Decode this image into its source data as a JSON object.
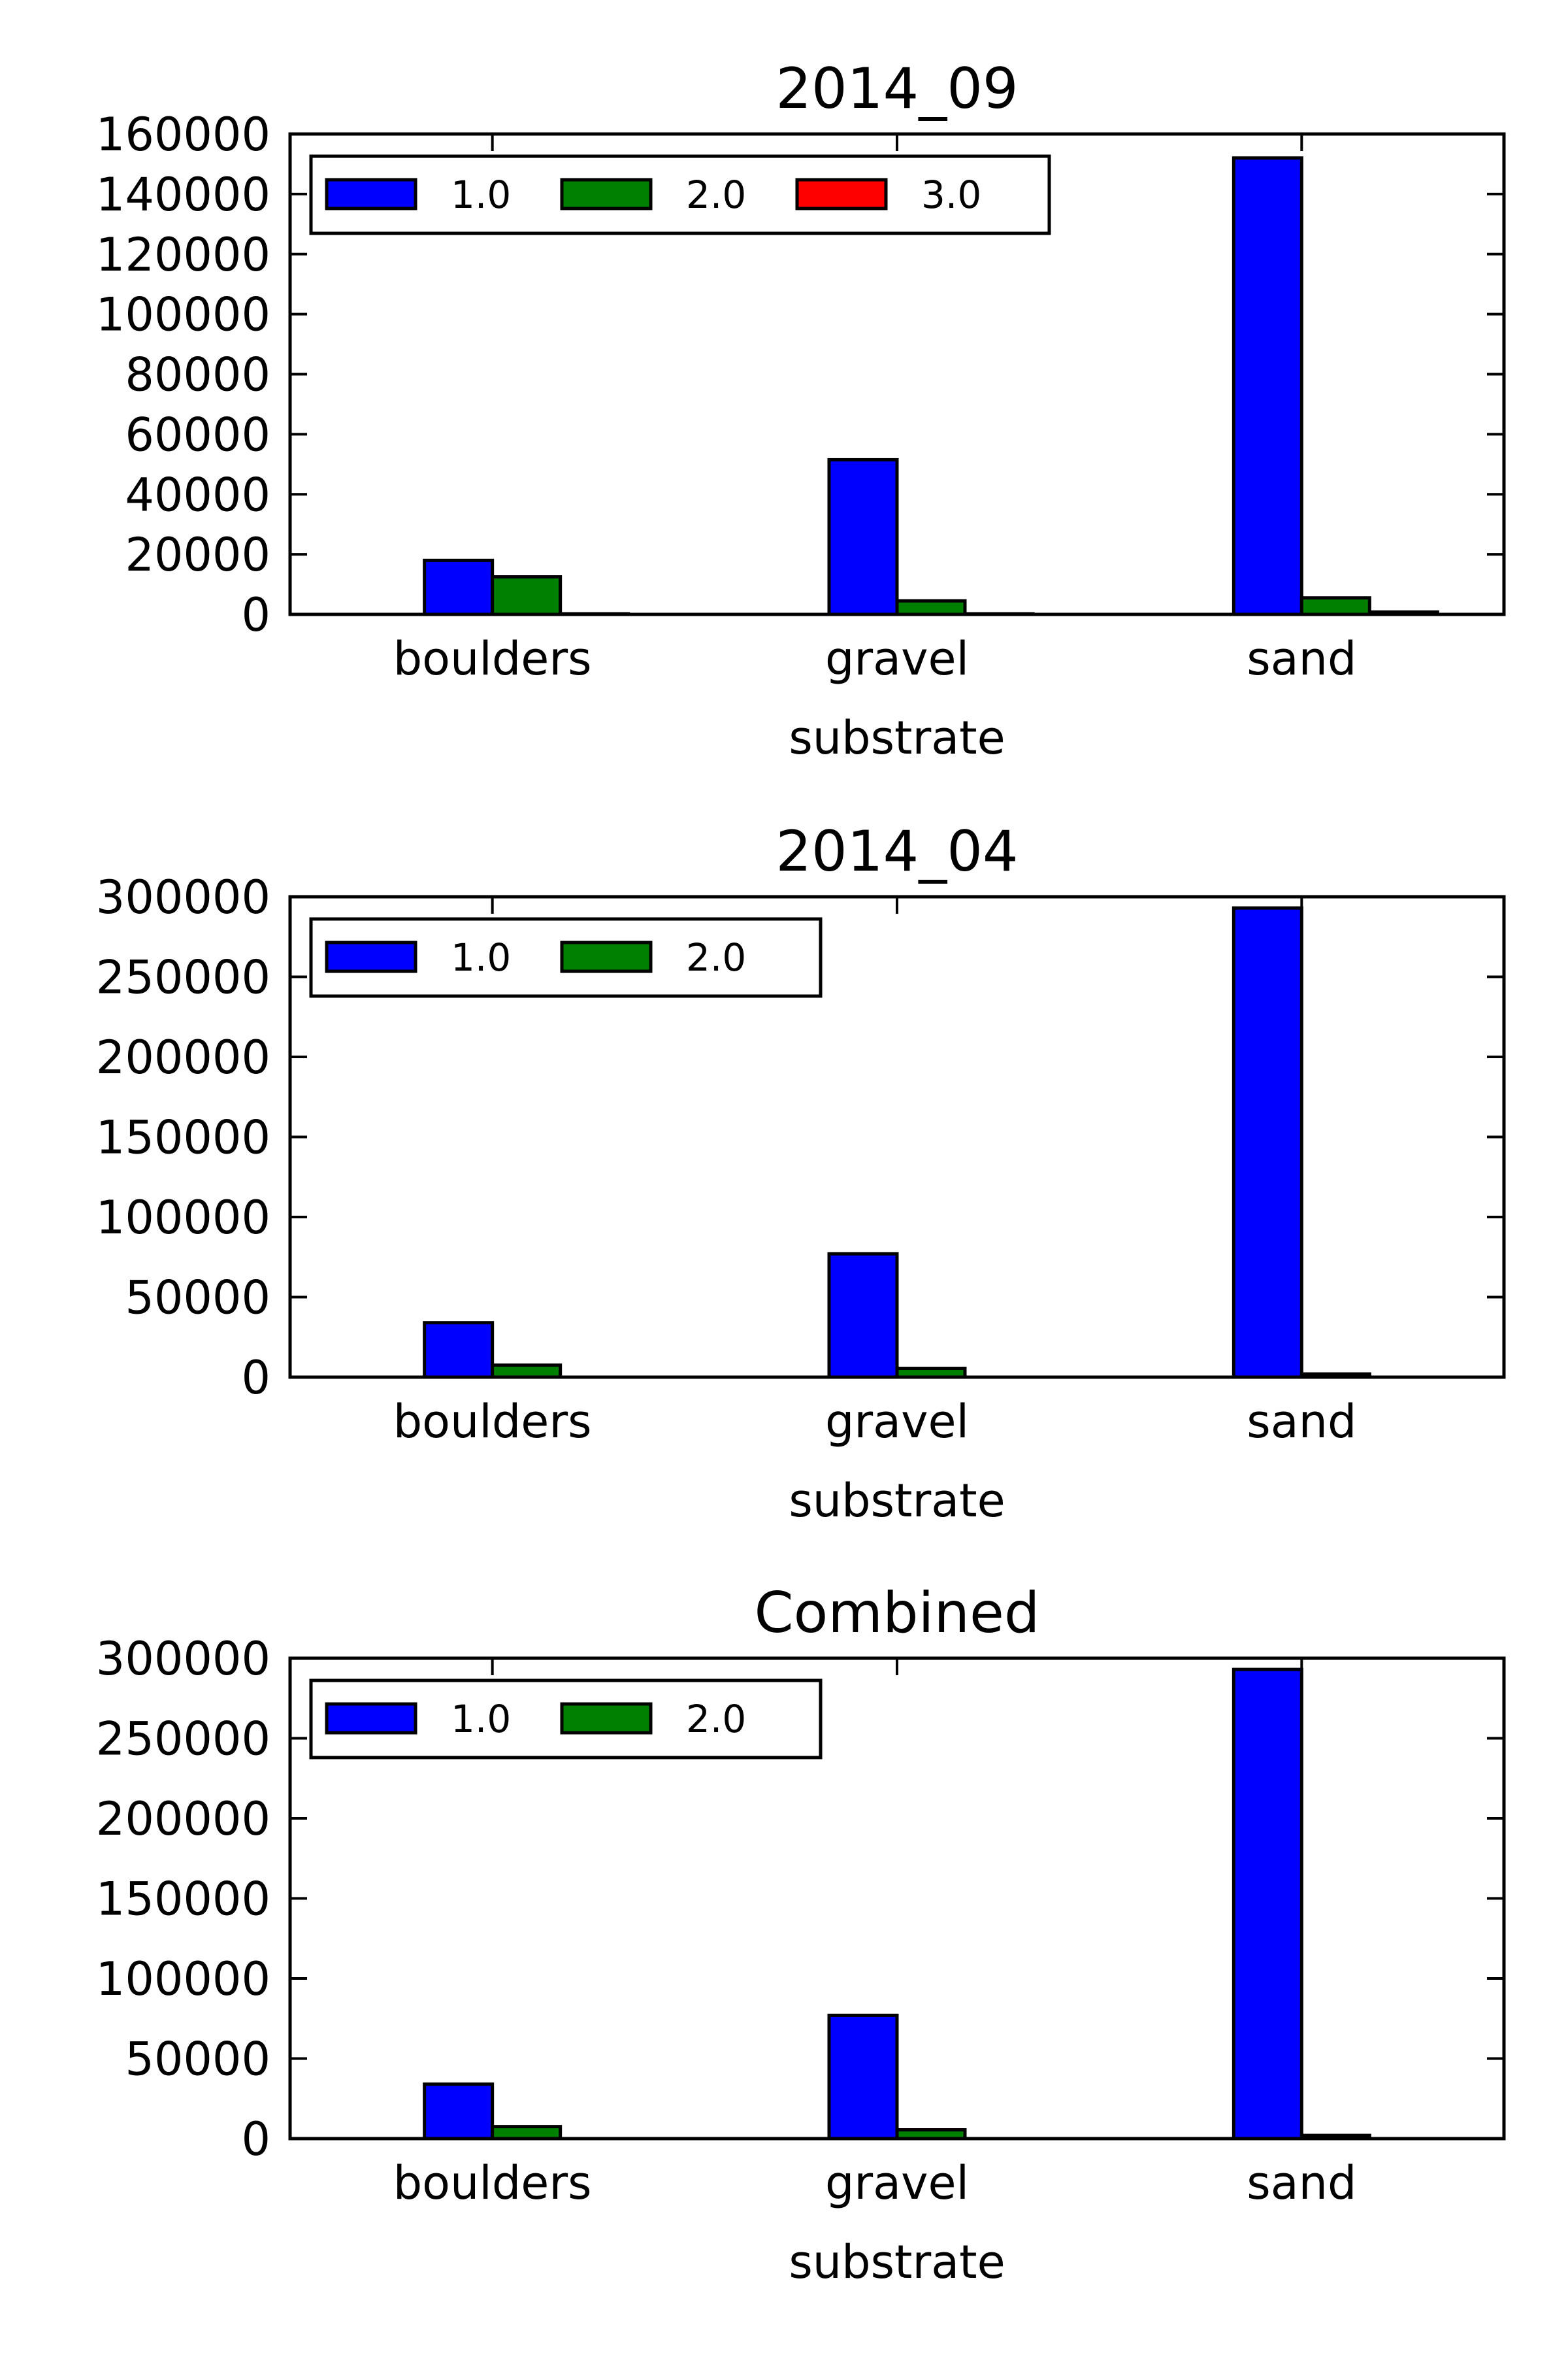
{
  "chart_data": [
    {
      "type": "bar",
      "title": "2014_09",
      "xlabel": "substrate",
      "ylabel": "",
      "categories": [
        "boulders",
        "gravel",
        "sand"
      ],
      "ylim": [
        0,
        160000
      ],
      "yticks": [
        "0",
        "20000",
        "40000",
        "60000",
        "80000",
        "100000",
        "120000",
        "140000",
        "160000"
      ],
      "legend_position": "top-left",
      "grid": false,
      "series": [
        {
          "name": "1.0",
          "color": "#0000ff",
          "values": [
            18000,
            51500,
            152000
          ]
        },
        {
          "name": "2.0",
          "color": "#008000",
          "values": [
            12500,
            4500,
            5500
          ]
        },
        {
          "name": "3.0",
          "color": "#ff0000",
          "values": [
            200,
            200,
            800
          ]
        }
      ]
    },
    {
      "type": "bar",
      "title": "2014_04",
      "xlabel": "substrate",
      "ylabel": "",
      "categories": [
        "boulders",
        "gravel",
        "sand"
      ],
      "ylim": [
        0,
        300000
      ],
      "yticks": [
        "0",
        "50000",
        "100000",
        "150000",
        "200000",
        "250000",
        "300000"
      ],
      "legend_position": "top-left",
      "grid": false,
      "series": [
        {
          "name": "1.0",
          "color": "#0000ff",
          "values": [
            34000,
            77000,
            293000
          ]
        },
        {
          "name": "2.0",
          "color": "#008000",
          "values": [
            7500,
            5500,
            2000
          ]
        }
      ]
    },
    {
      "type": "bar",
      "title": "Combined",
      "xlabel": "substrate",
      "ylabel": "",
      "categories": [
        "boulders",
        "gravel",
        "sand"
      ],
      "ylim": [
        0,
        300000
      ],
      "yticks": [
        "0",
        "50000",
        "100000",
        "150000",
        "200000",
        "250000",
        "300000"
      ],
      "legend_position": "top-left",
      "grid": false,
      "series": [
        {
          "name": "1.0",
          "color": "#0000ff",
          "values": [
            34000,
            77000,
            293000
          ]
        },
        {
          "name": "2.0",
          "color": "#008000",
          "values": [
            7500,
            5500,
            2000
          ]
        }
      ]
    }
  ]
}
